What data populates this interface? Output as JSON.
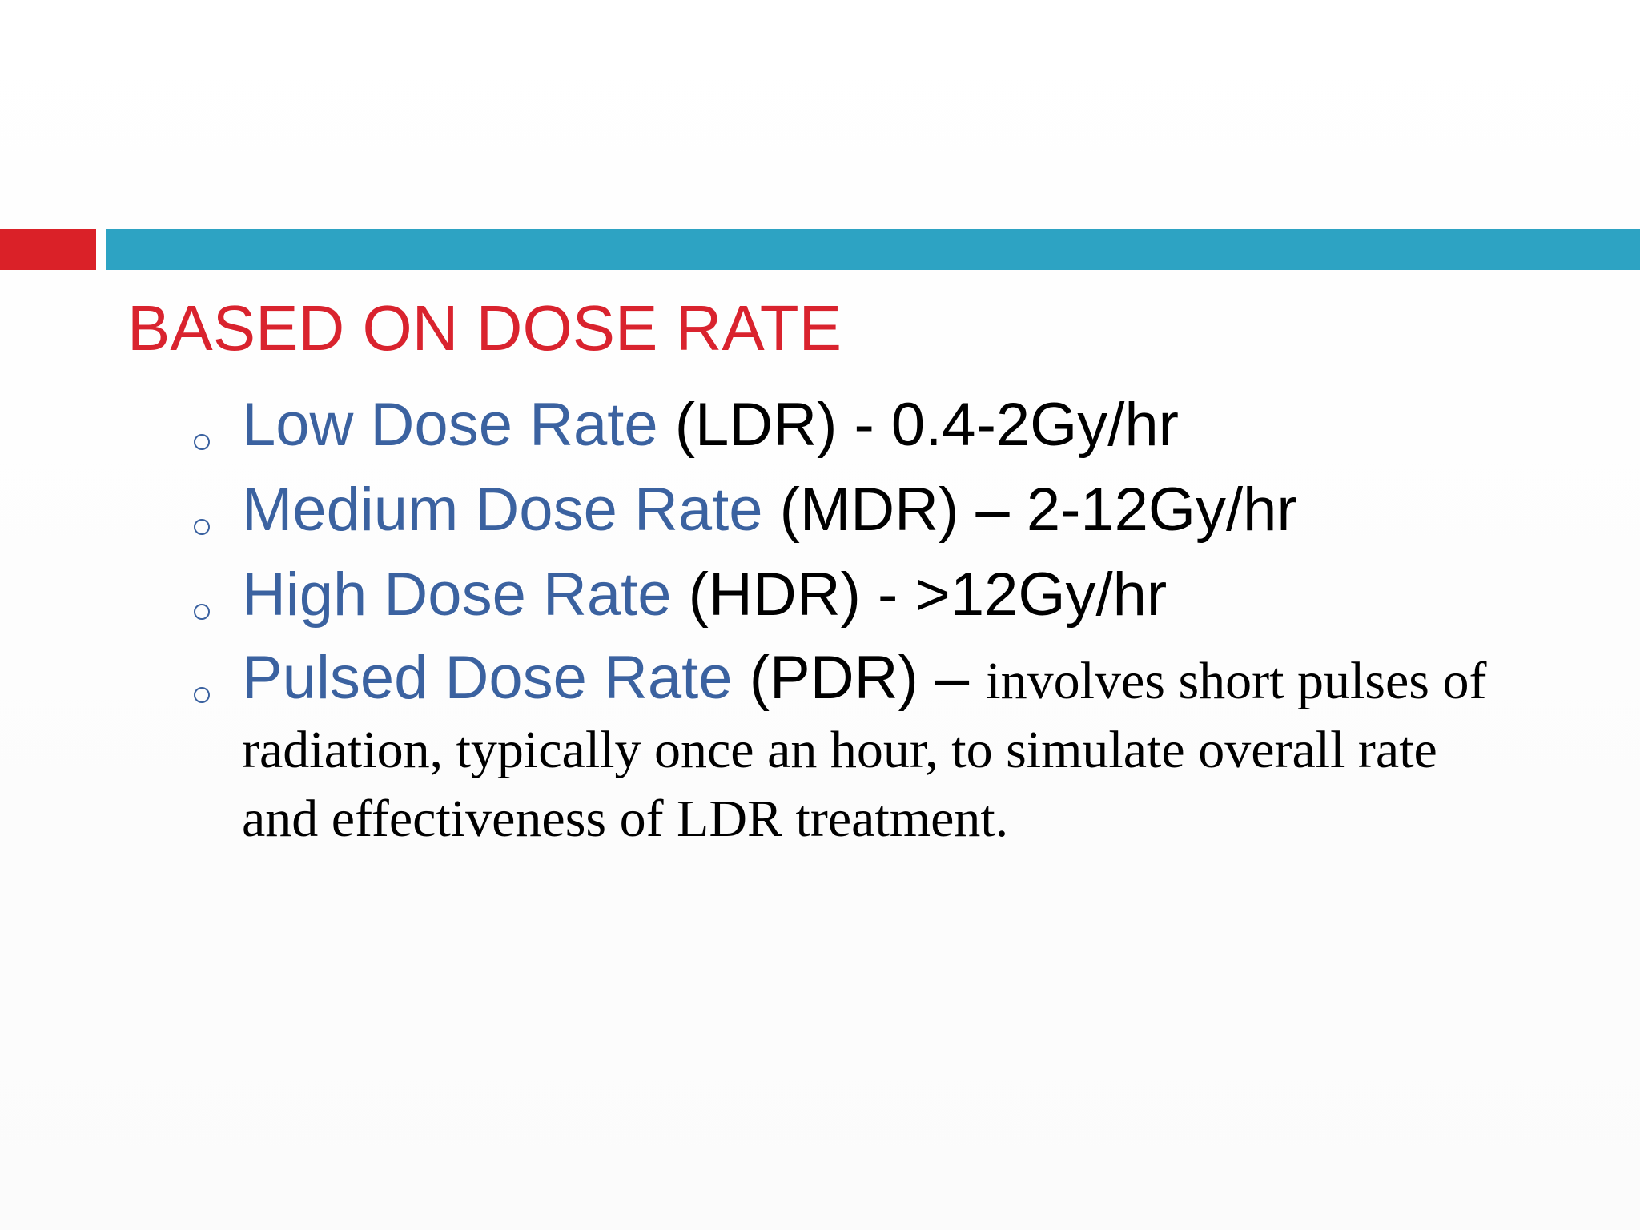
{
  "slide": {
    "title": "BASED ON DOSE RATE",
    "items": [
      {
        "term": "Low Dose Rate",
        "detail": "(LDR) - 0.4-2Gy/hr"
      },
      {
        "term": "Medium Dose Rate",
        "detail": "(MDR) – 2-12Gy/hr"
      },
      {
        "term": "High Dose Rate",
        "detail": "(HDR) - >12Gy/hr"
      },
      {
        "term": "Pulsed Dose Rate",
        "detail": "(PDR) –",
        "description": "involves short pulses of radiation, typically once an hour, to simulate overall rate and effectiveness of LDR treatment."
      }
    ]
  }
}
